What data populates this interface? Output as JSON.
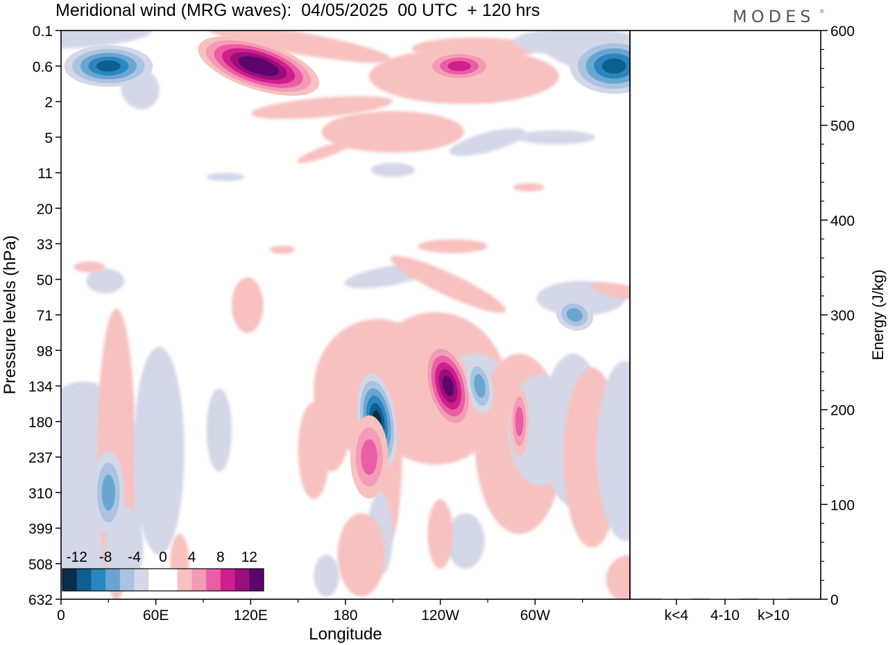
{
  "title": "Meridional wind (MRG waves):  04/05/2025  00 UTC  + 120 hrs",
  "brand": "MODES",
  "chart_data": [
    {
      "type": "heatmap",
      "title": "Meridional wind (MRG waves):  04/05/2025  00 UTC  + 120 hrs",
      "xlabel": "Longitude",
      "ylabel": "Pressure levels (hPa)",
      "x_ticks": [
        "0",
        "60E",
        "120E",
        "180",
        "120W",
        "60W"
      ],
      "y_ticks": [
        "0.1",
        "0.6",
        "2",
        "5",
        "11",
        "20",
        "33",
        "50",
        "71",
        "98",
        "134",
        "180",
        "237",
        "310",
        "399",
        "508",
        "632"
      ],
      "colorbar": {
        "labels": [
          "-12",
          "-8",
          "-4",
          "0",
          "4",
          "8",
          "12"
        ],
        "colors": [
          "#0b2d4a",
          "#0d5f8f",
          "#2a86bf",
          "#6aa5d2",
          "#a9c3e0",
          "#d3d7e8",
          "#ffffff",
          "#ffffff",
          "#f7c1bf",
          "#f39cb6",
          "#ea5ea5",
          "#cf1f8c",
          "#9a0e7a",
          "#5c056c"
        ]
      },
      "features": [
        {
          "lon": 30,
          "level": "0.6",
          "value": -10
        },
        {
          "lon": 125,
          "level": "0.6",
          "value": 14
        },
        {
          "lon": 252,
          "level": "0.6",
          "value": 8
        },
        {
          "lon": 350,
          "level": "0.6",
          "value": -10
        },
        {
          "lon": 200,
          "level": "180",
          "value": -12
        },
        {
          "lon": 245,
          "level": "134",
          "value": 12
        },
        {
          "lon": 265,
          "level": "134",
          "value": -6
        },
        {
          "lon": 325,
          "level": "71",
          "value": -6
        },
        {
          "lon": 195,
          "level": "237",
          "value": 6
        },
        {
          "lon": 30,
          "level": "310",
          "value": -6
        },
        {
          "lon": 290,
          "level": "180",
          "value": 6
        }
      ]
    },
    {
      "type": "bar",
      "ylabel": "Energy (J/kg)",
      "categories": [
        "k<4",
        "4-10",
        "k>10"
      ],
      "values": [
        0,
        0,
        0
      ],
      "ylim": [
        0,
        600
      ],
      "y_ticks": [
        "0",
        "100",
        "200",
        "300",
        "400",
        "500",
        "600"
      ]
    }
  ]
}
